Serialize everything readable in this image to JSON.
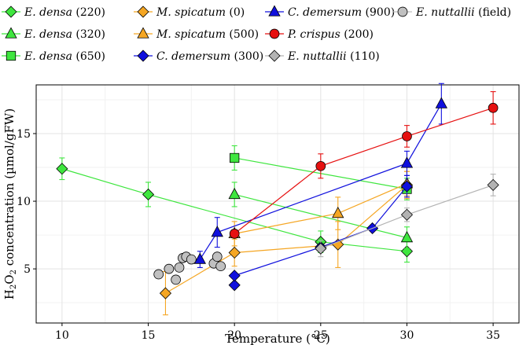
{
  "chart_data": {
    "type": "scatter",
    "xlabel": "Temperature (°C)",
    "ylabel_parts": {
      "base": "H",
      "sub1": "2",
      "mid": "O",
      "sub2": "2",
      "rest": " concentration (µmol/gFW)"
    },
    "xlim": [
      8.5,
      36.5
    ],
    "ylim": [
      1,
      18.6
    ],
    "xticks": [
      "10",
      "15",
      "20",
      "25",
      "30",
      "35"
    ],
    "yticks": [
      "5",
      "10",
      "15"
    ],
    "grid": true,
    "legend_position": "top",
    "series": [
      {
        "name": "E. densa",
        "species": "E. densa",
        "param": "(220)",
        "marker": "diamond",
        "color": "#3EE63E",
        "points": [
          {
            "x": 10,
            "y": 12.4,
            "err": 0.8
          },
          {
            "x": 15,
            "y": 10.5,
            "err": 0.9
          },
          {
            "x": 25,
            "y": 7.0,
            "err": 0.8
          },
          {
            "x": 30,
            "y": 6.3,
            "err": 0.8
          }
        ]
      },
      {
        "name": "E. densa",
        "species": "E. densa",
        "param": "(320)",
        "marker": "triangle",
        "color": "#3EE63E",
        "points": [
          {
            "x": 20,
            "y": 10.5,
            "err": 0.9
          },
          {
            "x": 30,
            "y": 7.3,
            "err": 0.8
          }
        ]
      },
      {
        "name": "E. densa",
        "species": "E. densa",
        "param": "(650)",
        "marker": "square",
        "color": "#3EE63E",
        "points": [
          {
            "x": 20,
            "y": 13.2,
            "err": 0.9
          },
          {
            "x": 30,
            "y": 10.9,
            "err": 0.8
          }
        ]
      },
      {
        "name": "M. spicatum",
        "species": "M. spicatum",
        "param": "(0)",
        "marker": "diamond",
        "color": "#F5A623",
        "points": [
          {
            "x": 16,
            "y": 3.2,
            "err": 1.6
          },
          {
            "x": 20,
            "y": 6.2,
            "err": 1.0
          },
          {
            "x": 26,
            "y": 6.8,
            "err": 1.7
          },
          {
            "x": 30,
            "y": 11.2,
            "err": 1.0
          }
        ]
      },
      {
        "name": "M. spicatum",
        "species": "M. spicatum",
        "param": "(500)",
        "marker": "triangle",
        "color": "#F5A623",
        "points": [
          {
            "x": 20,
            "y": 7.6,
            "err": 0.9
          },
          {
            "x": 26,
            "y": 9.1,
            "err": 1.2
          },
          {
            "x": 30,
            "y": 11.3,
            "err": 0.9
          }
        ]
      },
      {
        "name": "C. demersum",
        "species": "C. demersum",
        "param": "(300)",
        "marker": "diamond",
        "color": "#1010DD",
        "points": [
          {
            "x": 20,
            "y": 3.8,
            "err": 0
          },
          {
            "x": 20,
            "y": 4.5,
            "err": 0
          },
          {
            "x": 25,
            "y": 6.6,
            "err": 0
          },
          {
            "x": 28,
            "y": 8.0,
            "err": 0
          },
          {
            "x": 30,
            "y": 11.1,
            "err": 0.8
          }
        ]
      },
      {
        "name": "C. demersum",
        "species": "C. demersum",
        "param": "(900)",
        "marker": "triangle",
        "color": "#1010DD",
        "points": [
          {
            "x": 18,
            "y": 5.7,
            "err": 0.6
          },
          {
            "x": 19,
            "y": 7.7,
            "err": 1.1
          },
          {
            "x": 30,
            "y": 12.8,
            "err": 0.9
          },
          {
            "x": 32,
            "y": 17.2,
            "err": 1.5
          }
        ]
      },
      {
        "name": "P. crispus",
        "species": "P. crispus",
        "param": "(200)",
        "marker": "circle",
        "color": "#E61010",
        "points": [
          {
            "x": 20,
            "y": 7.6,
            "err": 0
          },
          {
            "x": 25,
            "y": 12.6,
            "err": 0.9
          },
          {
            "x": 30,
            "y": 14.8,
            "err": 0.8
          },
          {
            "x": 35,
            "y": 16.9,
            "err": 1.2
          }
        ]
      },
      {
        "name": "E. nuttallii",
        "species": "E. nuttallii",
        "param": "(110)",
        "marker": "diamond",
        "color": "#B3B3B3",
        "points": [
          {
            "x": 25,
            "y": 6.5,
            "err": 0.6
          },
          {
            "x": 30,
            "y": 9.0,
            "err": 0.5
          },
          {
            "x": 35,
            "y": 11.2,
            "err": 0.8
          }
        ]
      },
      {
        "name": "E. nuttallii",
        "species": "E. nuttallii",
        "param": "(field)",
        "marker": "circle",
        "color": "#C0C0C0",
        "nolines": true,
        "points": [
          {
            "x": 15.6,
            "y": 4.6,
            "err": 0
          },
          {
            "x": 16.2,
            "y": 5.0,
            "err": 0
          },
          {
            "x": 16.6,
            "y": 4.2,
            "err": 0
          },
          {
            "x": 16.8,
            "y": 5.1,
            "err": 0
          },
          {
            "x": 17.0,
            "y": 5.8,
            "err": 0
          },
          {
            "x": 17.2,
            "y": 5.9,
            "err": 0
          },
          {
            "x": 17.5,
            "y": 5.7,
            "err": 0
          },
          {
            "x": 18.8,
            "y": 5.4,
            "err": 0
          },
          {
            "x": 19.0,
            "y": 5.9,
            "err": 0
          },
          {
            "x": 19.2,
            "y": 5.2,
            "err": 0
          }
        ]
      }
    ],
    "legend": [
      {
        "series": 0
      },
      {
        "series": 3
      },
      {
        "series": 6
      },
      {
        "series": 9
      },
      {
        "series": 1
      },
      {
        "series": 4
      },
      {
        "series": 7
      },
      {
        "series": 2
      },
      {
        "series": 5
      },
      {
        "series": 8
      }
    ]
  }
}
